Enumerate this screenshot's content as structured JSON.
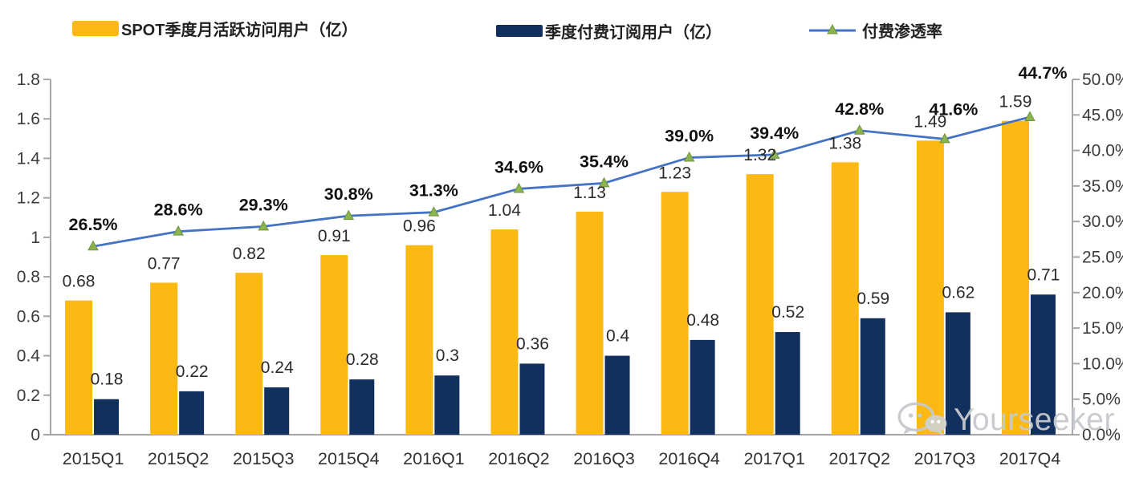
{
  "legend": {
    "items": [
      {
        "label": "SPOT季度月活跃访问用户（亿）",
        "swatch": "bar",
        "color": "#FDB913"
      },
      {
        "label": "季度付费订阅用户（亿）",
        "swatch": "bar",
        "color": "#12305E"
      },
      {
        "label": "付费渗透率",
        "swatch": "line-triangle",
        "line_color": "#4472C4",
        "marker_color": "#8CB44E"
      }
    ]
  },
  "chart_data": {
    "type": "bar+line combo",
    "categories": [
      "2015Q1",
      "2015Q2",
      "2015Q3",
      "2015Q4",
      "2016Q1",
      "2016Q2",
      "2016Q3",
      "2016Q4",
      "2017Q1",
      "2017Q2",
      "2017Q3",
      "2017Q4"
    ],
    "series": [
      {
        "name": "SPOT季度月活跃访问用户（亿）",
        "type": "bar",
        "axis": "left",
        "color": "#FDB913",
        "values": [
          0.68,
          0.77,
          0.82,
          0.91,
          0.96,
          1.04,
          1.13,
          1.23,
          1.32,
          1.38,
          1.49,
          1.59
        ],
        "labels": [
          "0.68",
          "0.77",
          "0.82",
          "0.91",
          "0.96",
          "1.04",
          "1.13",
          "1.23",
          "1.32",
          "1.38",
          "1.49",
          "1.59"
        ]
      },
      {
        "name": "季度付费订阅用户（亿）",
        "type": "bar",
        "axis": "left",
        "color": "#12305E",
        "values": [
          0.18,
          0.22,
          0.24,
          0.28,
          0.3,
          0.36,
          0.4,
          0.48,
          0.52,
          0.59,
          0.62,
          0.71
        ],
        "labels": [
          "0.18",
          "0.22",
          "0.24",
          "0.28",
          "0.3",
          "0.36",
          "0.4",
          "0.48",
          "0.52",
          "0.59",
          "0.62",
          "0.71"
        ]
      },
      {
        "name": "付费渗透率",
        "type": "line",
        "axis": "right",
        "color": "#4472C4",
        "marker": "triangle",
        "marker_color": "#8CB44E",
        "values": [
          26.5,
          28.6,
          29.3,
          30.8,
          31.3,
          34.6,
          35.4,
          39.0,
          39.4,
          42.8,
          41.6,
          44.7
        ],
        "labels": [
          "26.5%",
          "28.6%",
          "29.3%",
          "30.8%",
          "31.3%",
          "34.6%",
          "35.4%",
          "39.0%",
          "39.4%",
          "42.8%",
          "41.6%",
          "44.7%"
        ]
      }
    ],
    "left_axis": {
      "min": 0,
      "max": 1.8,
      "tick_labels": [
        "0",
        "0.2",
        "0.4",
        "0.6",
        "0.8",
        "1",
        "1.2",
        "1.4",
        "1.6",
        "1.8"
      ]
    },
    "right_axis": {
      "min": 0,
      "max": 50,
      "tick_labels": [
        "0.0%",
        "5.0%",
        "10.0%",
        "15.0%",
        "20.0%",
        "25.0%",
        "30.0%",
        "35.0%",
        "40.0%",
        "45.0%",
        "50.0%"
      ]
    },
    "grid": false,
    "legend_position": "top",
    "axis_color": "#A6A6A6"
  },
  "watermark": {
    "text": "Yourseeker",
    "icon": "wechat-icon"
  }
}
